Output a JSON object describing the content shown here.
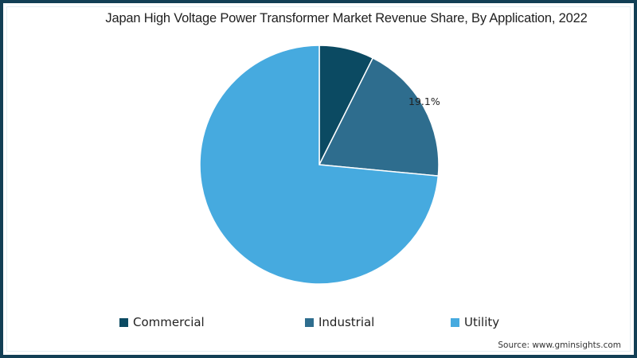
{
  "chart_data": {
    "type": "pie",
    "title": "Japan High Voltage Power Transformer Market Revenue Share, By Application, 2022",
    "categories": [
      "Commercial",
      "Industrial",
      "Utility"
    ],
    "values": [
      7.4,
      19.1,
      73.5
    ],
    "colors": [
      "#0b4a62",
      "#2e6d8e",
      "#46aadf"
    ],
    "data_labels": [
      {
        "category": "Industrial",
        "text": "19.1%"
      }
    ],
    "legend_position": "bottom",
    "start_angle_deg": 0,
    "direction": "clockwise"
  },
  "title": "Japan High Voltage Power Transformer Market Revenue Share, By Application, 2022",
  "legend": [
    {
      "label": "Commercial",
      "color": "#0b4a62"
    },
    {
      "label": "Industrial",
      "color": "#2e6d8e"
    },
    {
      "label": "Utility",
      "color": "#46aadf"
    }
  ],
  "labels": {
    "industrial": "19.1%"
  },
  "source": "Source: www.gminsights.com"
}
